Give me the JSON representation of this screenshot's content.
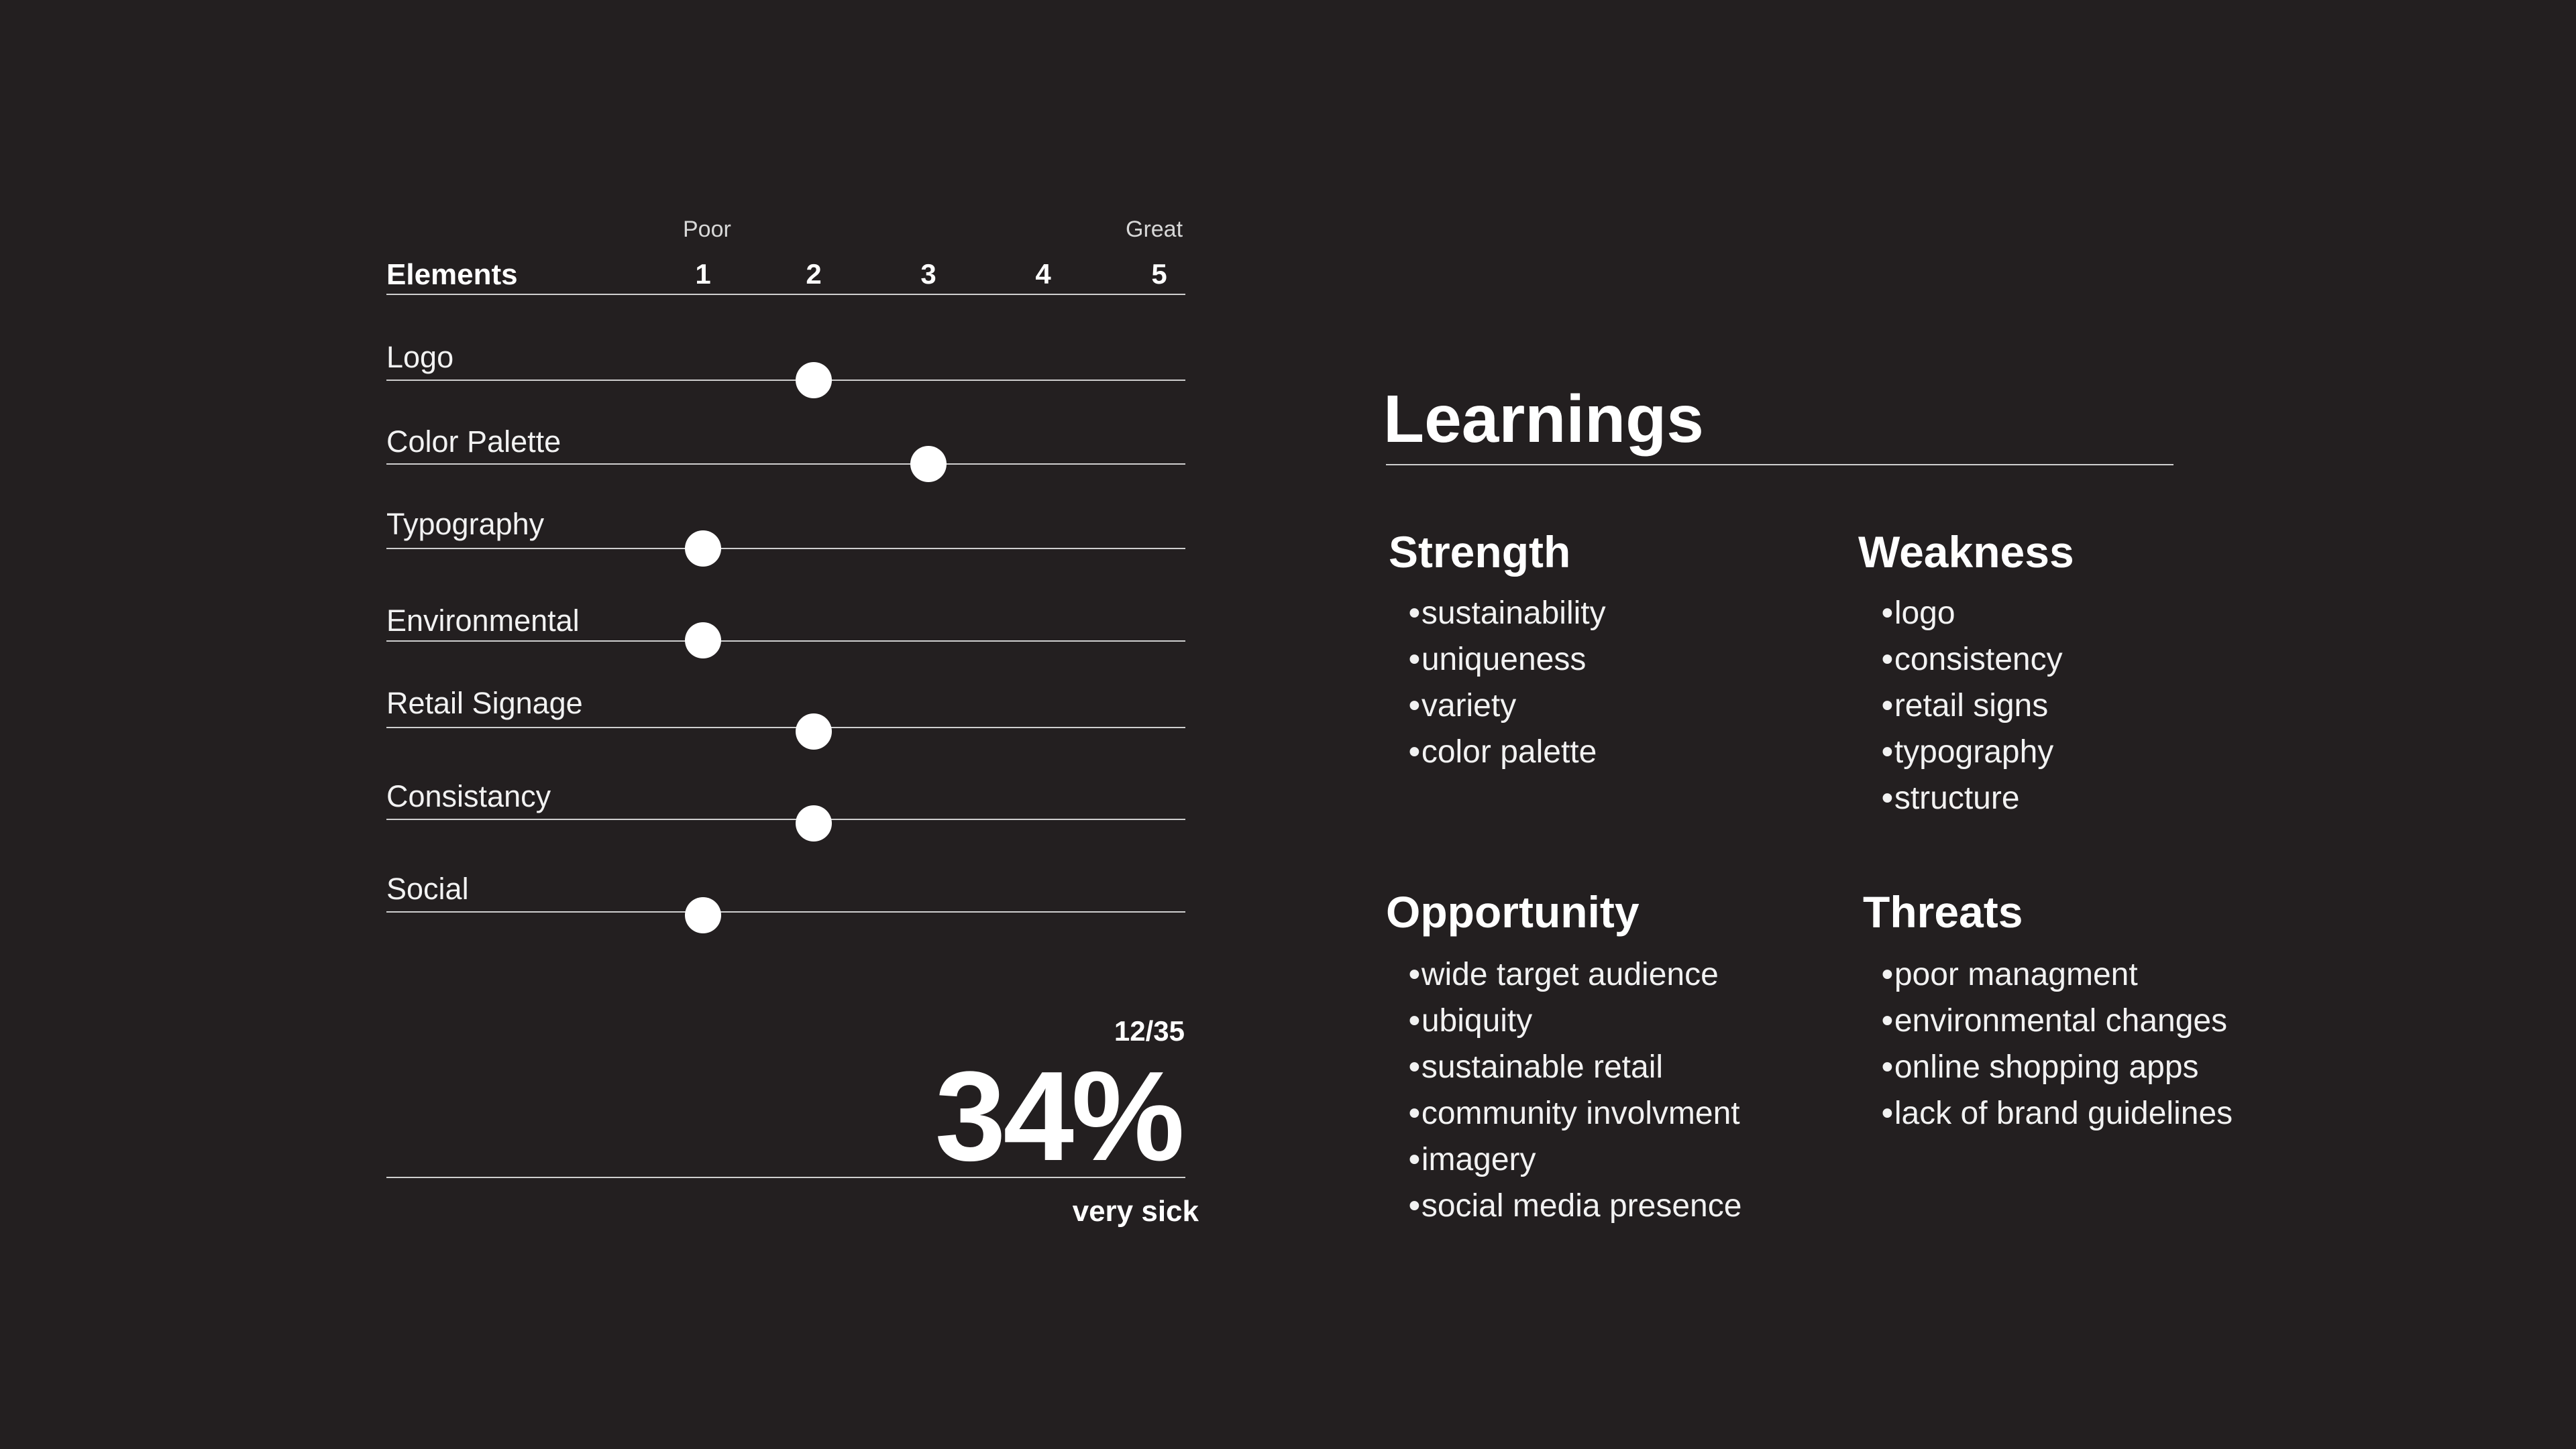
{
  "rating": {
    "scale_low_label": "Poor",
    "scale_high_label": "Great",
    "header_label": "Elements",
    "scale_numbers": [
      "1",
      "2",
      "3",
      "4",
      "5"
    ],
    "rows": [
      {
        "label": "Logo",
        "score": 2
      },
      {
        "label": "Color Palette",
        "score": 3
      },
      {
        "label": "Typography",
        "score": 1
      },
      {
        "label": "Environmental",
        "score": 1
      },
      {
        "label": "Retail Signage",
        "score": 2
      },
      {
        "label": "Consistancy",
        "score": 2
      },
      {
        "label": "Social",
        "score": 1
      }
    ],
    "total_fraction": "12/35",
    "percentage": "34%",
    "verdict": "very sick"
  },
  "learnings": {
    "title": "Learnings",
    "strength": {
      "title": "Strength",
      "items": [
        "sustainability",
        "uniqueness",
        "variety",
        "color palette"
      ]
    },
    "weakness": {
      "title": "Weakness",
      "items": [
        "logo",
        "consistency",
        "retail signs",
        "typography",
        "structure"
      ]
    },
    "opportunity": {
      "title": "Opportunity",
      "items": [
        "wide target audience",
        "ubiquity",
        "sustainable retail",
        "community involvment",
        "imagery",
        "social media presence"
      ]
    },
    "threats": {
      "title": "Threats",
      "items": [
        "poor managment",
        "environmental changes",
        "online shopping apps",
        "lack of brand guidelines"
      ]
    }
  }
}
